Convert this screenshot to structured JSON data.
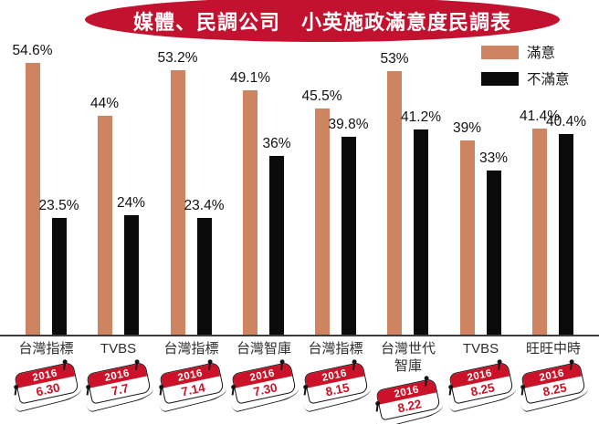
{
  "title": {
    "text": "媒體、民調公司　小英施政滿意度民調表"
  },
  "legend": {
    "items": [
      {
        "label": "滿意",
        "color": "#CE8361"
      },
      {
        "label": "不滿意",
        "color": "#0B0B0B"
      }
    ]
  },
  "colors": {
    "banner_red": "#C2122F",
    "calendar_red": "#CC1228",
    "satisfied": "#CE8361",
    "dissatisfied": "#0B0B0B",
    "baseline": "#3C3C3C",
    "text": "#1A1A1A"
  },
  "chart_data": {
    "type": "bar",
    "title": "媒體、民調公司 小英施政滿意度民調表",
    "categories": [
      "台灣指標",
      "TVBS",
      "台灣指標",
      "台灣智庫",
      "台灣指標",
      "台灣世代智庫",
      "TVBS",
      "旺旺中時"
    ],
    "dates": [
      {
        "year": "2016",
        "day": "6.30"
      },
      {
        "year": "2016",
        "day": "7.7"
      },
      {
        "year": "2016",
        "day": "7.14"
      },
      {
        "year": "2016",
        "day": "7.30"
      },
      {
        "year": "2016",
        "day": "8.15"
      },
      {
        "year": "2016",
        "day": "8.22"
      },
      {
        "year": "2016",
        "day": "8.25"
      },
      {
        "year": "2016",
        "day": "8.25"
      }
    ],
    "series": [
      {
        "name": "滿意",
        "color": "#CE8361",
        "values": [
          54.6,
          44,
          53.2,
          49.1,
          45.5,
          53,
          39,
          41.4
        ],
        "labels": [
          "54.6%",
          "44%",
          "53.2%",
          "49.1%",
          "45.5%",
          "53%",
          "39%",
          "41.4%"
        ]
      },
      {
        "name": "不滿意",
        "color": "#0B0B0B",
        "values": [
          23.5,
          24,
          23.4,
          36,
          39.8,
          41.2,
          33,
          40.4
        ],
        "labels": [
          "23.5%",
          "24%",
          "23.4%",
          "36%",
          "39.8%",
          "41.2%",
          "33%",
          "40.4%"
        ]
      }
    ],
    "ylabel": "",
    "xlabel": "",
    "ylim": [
      0,
      60
    ],
    "grid": false,
    "legend_position": "top-right"
  }
}
